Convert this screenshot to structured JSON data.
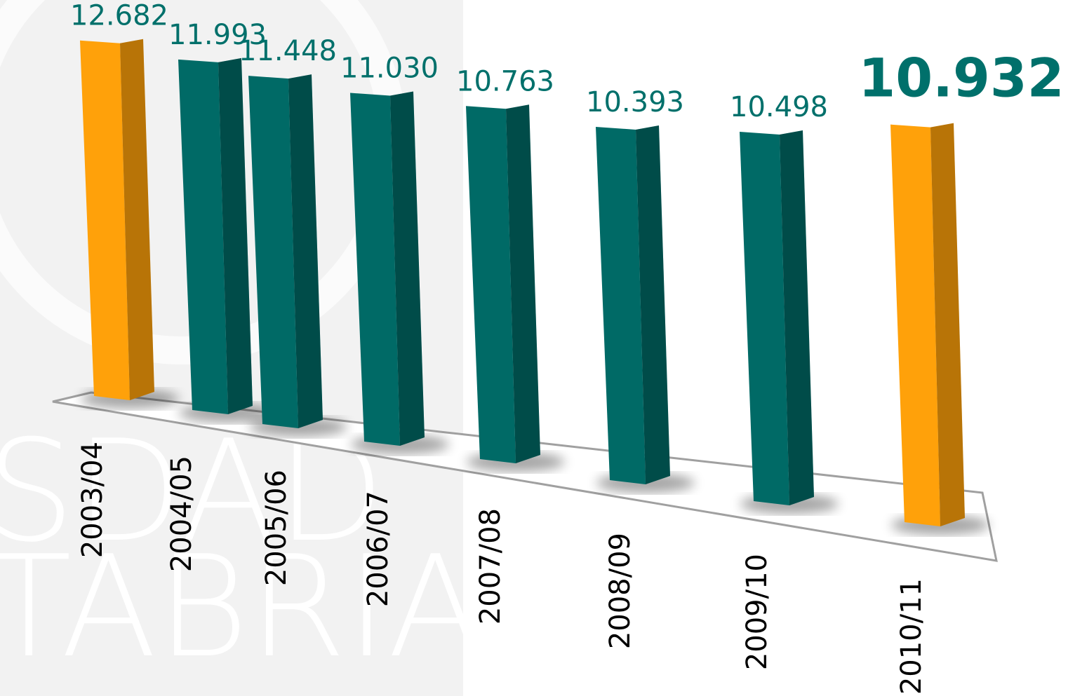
{
  "chart_data": {
    "type": "bar3d",
    "watermark": [
      "SDAD",
      "TABRIA"
    ],
    "categories": [
      "2003/04",
      "2004/05",
      "2005/06",
      "2006/07",
      "2007/08",
      "2008/09",
      "2009/10",
      "2010/11"
    ],
    "values": [
      12682,
      11993,
      11448,
      11030,
      10763,
      10393,
      10498,
      10932
    ],
    "value_labels": [
      "12.682",
      "11.993",
      "11.448",
      "11.030",
      "10.763",
      "10.393",
      "10.498",
      "10.932"
    ],
    "colors": [
      "#ffa10a",
      "#006a66",
      "#006a66",
      "#006a66",
      "#006a66",
      "#006a66",
      "#006a66",
      "#ffa10a"
    ]
  }
}
